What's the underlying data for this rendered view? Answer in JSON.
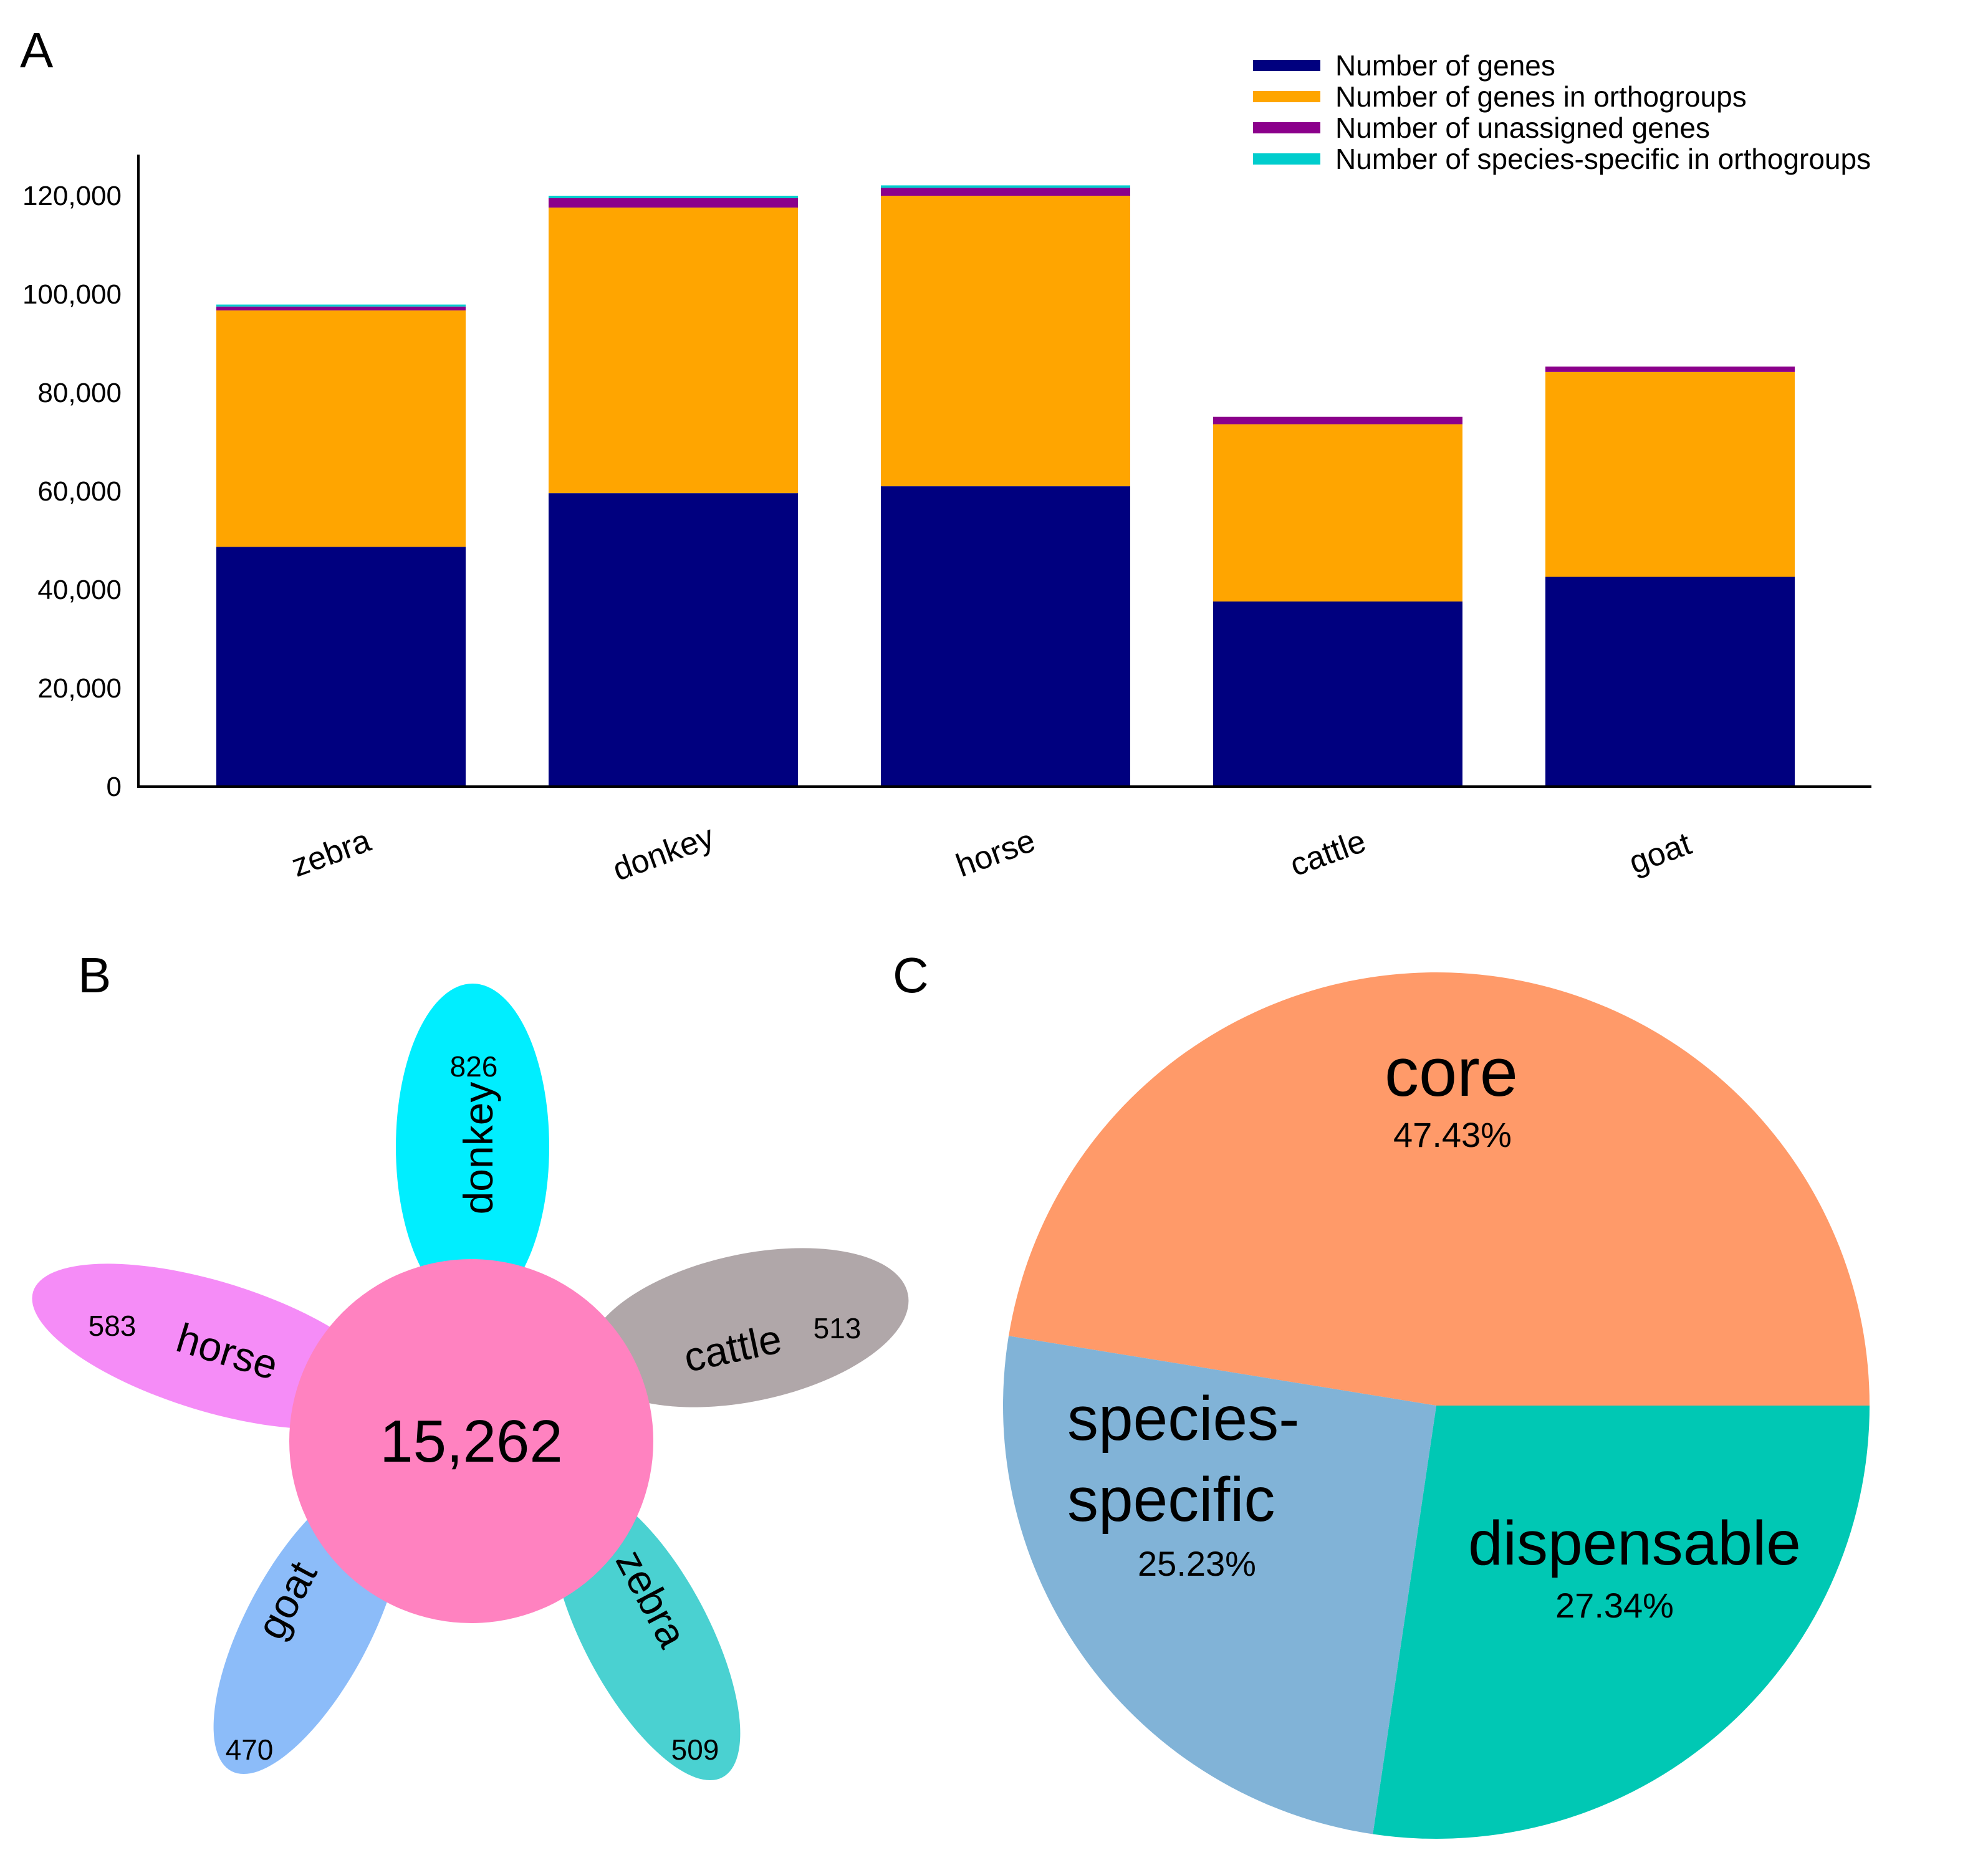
{
  "chart_data": [
    {
      "panel": "A",
      "type": "bar",
      "stacked": true,
      "categories": [
        "zebra",
        "donkey",
        "horse",
        "cattle",
        "goat"
      ],
      "series": [
        {
          "name": "Number of genes",
          "color": "#00007f",
          "values": [
            48700,
            59600,
            61000,
            37600,
            42600
          ]
        },
        {
          "name": "Number of genes in orthogroups",
          "color": "#ffa500",
          "values": [
            48000,
            58000,
            59000,
            36000,
            41600
          ]
        },
        {
          "name": "Number of unassigned genes",
          "color": "#8b008b",
          "values": [
            800,
            1900,
            1600,
            1500,
            1100
          ]
        },
        {
          "name": "Number of species-specific in orthogroups",
          "color": "#00cdcd",
          "values": [
            400,
            500,
            500,
            0,
            0
          ]
        }
      ],
      "yticks": [
        "0",
        "20,000",
        "40,000",
        "60,000",
        "80,000",
        "100,000",
        "120,000"
      ],
      "ylim": [
        0,
        128000
      ],
      "legend_position": "top-right"
    },
    {
      "panel": "B",
      "type": "flower",
      "core": {
        "value": "15,262",
        "color": "#ff82c0"
      },
      "petals": [
        {
          "name": "donkey",
          "count": "826",
          "color": "#00eeff"
        },
        {
          "name": "cattle",
          "count": "513",
          "color": "#b0a7a9"
        },
        {
          "name": "zebra",
          "count": "509",
          "color": "#4ad1d1"
        },
        {
          "name": "goat",
          "count": "470",
          "color": "#8cbcf9"
        },
        {
          "name": "horse",
          "count": "583",
          "color": "#f58cf7"
        }
      ]
    },
    {
      "panel": "C",
      "type": "pie",
      "slices": [
        {
          "name": "core",
          "pct": "47.43%",
          "value": 47.43,
          "color": "#ff9a69"
        },
        {
          "name": "dispensable",
          "pct": "27.34%",
          "value": 27.34,
          "color": "#00c8b4"
        },
        {
          "name_lines": [
            "species-",
            "specific"
          ],
          "pct": "25.23%",
          "value": 25.23,
          "color": "#81b3d7"
        }
      ]
    }
  ],
  "panel_labels": {
    "a": "A",
    "b": "B",
    "c": "C"
  }
}
